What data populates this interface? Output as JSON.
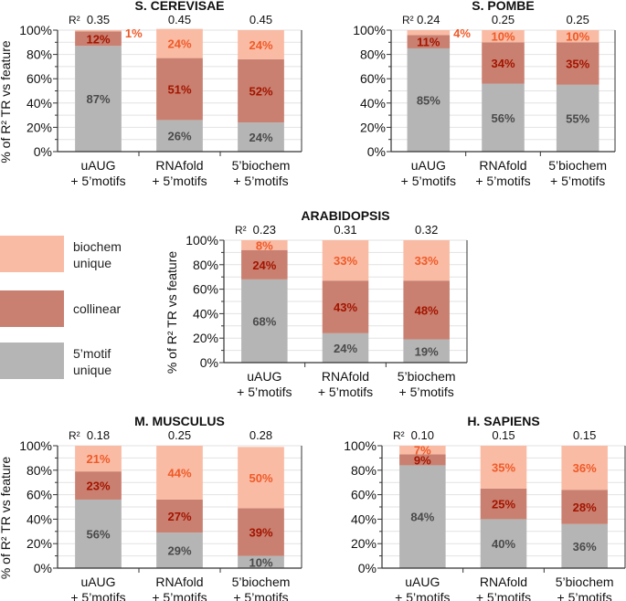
{
  "legend": {
    "items": [
      {
        "line1": "biochem",
        "line2": "unique",
        "color": "#f9bba4"
      },
      {
        "line1": "collinear",
        "line2": "",
        "color": "#c98070"
      },
      {
        "line1": "5’motif",
        "line2": "unique",
        "color": "#b5b5b5"
      }
    ]
  },
  "label_colors": {
    "motif": "#4a4a4a",
    "collinear": "#a31400",
    "biochem": "#f05a28"
  },
  "chart_data": [
    {
      "type": "bar",
      "stacked": true,
      "title": "S. CEREVISAE",
      "ylabel": "% of R² TR vs feature",
      "r2_label": "R²",
      "yticks": [
        "0%",
        "20%",
        "40%",
        "60%",
        "80%",
        "100%"
      ],
      "ylim": [
        0,
        100
      ],
      "categories": [
        [
          "uAUG",
          "+ 5’motifs"
        ],
        [
          "RNAfold",
          "+ 5’motifs"
        ],
        [
          "5’biochem",
          "+ 5’motifs"
        ]
      ],
      "r2": [
        "0.35",
        "0.45",
        "0.45"
      ],
      "series": [
        {
          "name": "5'motif unique",
          "values": [
            87,
            26,
            24
          ]
        },
        {
          "name": "collinear",
          "values": [
            12,
            51,
            52
          ]
        },
        {
          "name": "biochem unique",
          "values": [
            1,
            24,
            24
          ]
        }
      ]
    },
    {
      "type": "bar",
      "stacked": true,
      "title": "S. POMBE",
      "ylabel": "",
      "r2_label": "R²",
      "yticks": [
        "0%",
        "20%",
        "40%",
        "60%",
        "80%",
        "100%"
      ],
      "ylim": [
        0,
        100
      ],
      "categories": [
        [
          "uAUG",
          "+ 5’motifs"
        ],
        [
          "RNAfold",
          "+ 5’motifs"
        ],
        [
          "5’biochem",
          "+ 5’motifs"
        ]
      ],
      "r2": [
        "0.24",
        "0.25",
        "0.25"
      ],
      "series": [
        {
          "name": "5'motif unique",
          "values": [
            85,
            56,
            55
          ]
        },
        {
          "name": "collinear",
          "values": [
            11,
            34,
            35
          ]
        },
        {
          "name": "biochem unique",
          "values": [
            4,
            10,
            10
          ]
        }
      ]
    },
    {
      "type": "bar",
      "stacked": true,
      "title": "ARABIDOPSIS",
      "ylabel": "% of R² TR vs feature",
      "r2_label": "R²",
      "yticks": [
        "0%",
        "20%",
        "40%",
        "60%",
        "80%",
        "100%"
      ],
      "ylim": [
        0,
        100
      ],
      "categories": [
        [
          "uAUG",
          "+ 5’motifs"
        ],
        [
          "RNAfold",
          "+ 5’motifs"
        ],
        [
          "5’biochem",
          "+ 5’motifs"
        ]
      ],
      "r2": [
        "0.23",
        "0.31",
        "0.32"
      ],
      "series": [
        {
          "name": "5'motif unique",
          "values": [
            68,
            24,
            19
          ]
        },
        {
          "name": "collinear",
          "values": [
            24,
            43,
            48
          ]
        },
        {
          "name": "biochem unique",
          "values": [
            8,
            33,
            33
          ]
        }
      ]
    },
    {
      "type": "bar",
      "stacked": true,
      "title": "M. MUSCULUS",
      "ylabel": "% of R² TR vs feature",
      "r2_label": "R²",
      "yticks": [
        "0%",
        "20%",
        "40%",
        "60%",
        "80%",
        "100%"
      ],
      "ylim": [
        0,
        100
      ],
      "categories": [
        [
          "uAUG",
          "+ 5’motifs"
        ],
        [
          "RNAfold",
          "+ 5’motifs"
        ],
        [
          "5’biochem",
          "+ 5’motifs"
        ]
      ],
      "r2": [
        "0.18",
        "0.25",
        "0.28"
      ],
      "series": [
        {
          "name": "5'motif unique",
          "values": [
            56,
            29,
            10
          ]
        },
        {
          "name": "collinear",
          "values": [
            23,
            27,
            39
          ]
        },
        {
          "name": "biochem unique",
          "values": [
            21,
            44,
            50
          ]
        }
      ]
    },
    {
      "type": "bar",
      "stacked": true,
      "title": "H. SAPIENS",
      "ylabel": "",
      "r2_label": "R²",
      "yticks": [
        "0%",
        "20%",
        "40%",
        "60%",
        "80%",
        "100%"
      ],
      "ylim": [
        0,
        100
      ],
      "categories": [
        [
          "uAUG",
          "+ 5’motifs"
        ],
        [
          "RNAfold",
          "+ 5’motifs"
        ],
        [
          "5’biochem",
          "+ 5’motifs"
        ]
      ],
      "r2": [
        "0.10",
        "0.15",
        "0.15"
      ],
      "series": [
        {
          "name": "5'motif unique",
          "values": [
            84,
            40,
            36
          ]
        },
        {
          "name": "collinear",
          "values": [
            9,
            25,
            28
          ]
        },
        {
          "name": "biochem unique",
          "values": [
            7,
            35,
            36
          ]
        }
      ]
    }
  ]
}
